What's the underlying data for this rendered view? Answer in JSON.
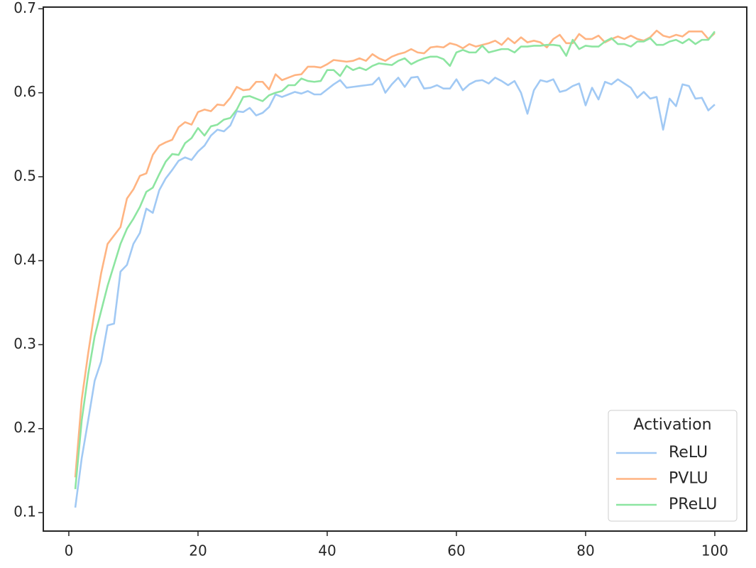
{
  "chart_data": {
    "type": "line",
    "x": [
      1,
      2,
      3,
      4,
      5,
      6,
      7,
      8,
      9,
      10,
      11,
      12,
      13,
      14,
      15,
      16,
      17,
      18,
      19,
      20,
      21,
      22,
      23,
      24,
      25,
      26,
      27,
      28,
      29,
      30,
      31,
      32,
      33,
      34,
      35,
      36,
      37,
      38,
      39,
      40,
      41,
      42,
      43,
      44,
      45,
      46,
      47,
      48,
      49,
      50,
      51,
      52,
      53,
      54,
      55,
      56,
      57,
      58,
      59,
      60,
      61,
      62,
      63,
      64,
      65,
      66,
      67,
      68,
      69,
      70,
      71,
      72,
      73,
      74,
      75,
      76,
      77,
      78,
      79,
      80,
      81,
      82,
      83,
      84,
      85,
      86,
      87,
      88,
      89,
      90,
      91,
      92,
      93,
      94,
      95,
      96,
      97,
      98,
      99,
      100
    ],
    "series": [
      {
        "name": "ReLU",
        "color": "#a1c9f4",
        "values": [
          0.106,
          0.165,
          0.21,
          0.257,
          0.28,
          0.323,
          0.325,
          0.387,
          0.395,
          0.42,
          0.433,
          0.462,
          0.457,
          0.484,
          0.498,
          0.508,
          0.519,
          0.523,
          0.52,
          0.53,
          0.537,
          0.549,
          0.556,
          0.554,
          0.561,
          0.578,
          0.577,
          0.582,
          0.573,
          0.576,
          0.583,
          0.598,
          0.595,
          0.598,
          0.601,
          0.599,
          0.602,
          0.598,
          0.598,
          0.604,
          0.61,
          0.615,
          0.606,
          0.607,
          0.608,
          0.609,
          0.61,
          0.618,
          0.6,
          0.61,
          0.618,
          0.607,
          0.618,
          0.619,
          0.605,
          0.606,
          0.609,
          0.605,
          0.605,
          0.616,
          0.603,
          0.61,
          0.614,
          0.615,
          0.611,
          0.618,
          0.614,
          0.609,
          0.614,
          0.6,
          0.575,
          0.603,
          0.615,
          0.613,
          0.616,
          0.601,
          0.603,
          0.608,
          0.611,
          0.585,
          0.606,
          0.592,
          0.613,
          0.61,
          0.616,
          0.611,
          0.606,
          0.594,
          0.601,
          0.593,
          0.595,
          0.556,
          0.593,
          0.584,
          0.61,
          0.608,
          0.593,
          0.594,
          0.579,
          0.586
        ]
      },
      {
        "name": "PVLU",
        "color": "#ffb482",
        "values": [
          0.142,
          0.235,
          0.29,
          0.34,
          0.385,
          0.42,
          0.43,
          0.44,
          0.474,
          0.485,
          0.501,
          0.504,
          0.526,
          0.537,
          0.541,
          0.544,
          0.559,
          0.565,
          0.562,
          0.577,
          0.58,
          0.578,
          0.586,
          0.585,
          0.594,
          0.607,
          0.603,
          0.604,
          0.613,
          0.613,
          0.604,
          0.622,
          0.615,
          0.618,
          0.621,
          0.622,
          0.631,
          0.631,
          0.63,
          0.634,
          0.639,
          0.638,
          0.637,
          0.638,
          0.641,
          0.638,
          0.646,
          0.641,
          0.638,
          0.643,
          0.646,
          0.648,
          0.652,
          0.648,
          0.647,
          0.654,
          0.655,
          0.654,
          0.659,
          0.657,
          0.653,
          0.658,
          0.655,
          0.657,
          0.659,
          0.662,
          0.657,
          0.665,
          0.659,
          0.666,
          0.66,
          0.662,
          0.66,
          0.654,
          0.664,
          0.669,
          0.659,
          0.659,
          0.67,
          0.664,
          0.664,
          0.668,
          0.66,
          0.664,
          0.667,
          0.664,
          0.668,
          0.664,
          0.662,
          0.666,
          0.674,
          0.668,
          0.666,
          0.669,
          0.667,
          0.673,
          0.673,
          0.673,
          0.664,
          0.671
        ]
      },
      {
        "name": "PReLU",
        "color": "#8de5a1",
        "values": [
          0.128,
          0.21,
          0.265,
          0.31,
          0.34,
          0.37,
          0.395,
          0.42,
          0.438,
          0.45,
          0.464,
          0.482,
          0.487,
          0.503,
          0.518,
          0.527,
          0.526,
          0.54,
          0.546,
          0.558,
          0.549,
          0.56,
          0.562,
          0.568,
          0.57,
          0.58,
          0.595,
          0.596,
          0.593,
          0.59,
          0.597,
          0.6,
          0.602,
          0.609,
          0.609,
          0.617,
          0.614,
          0.613,
          0.614,
          0.627,
          0.627,
          0.62,
          0.632,
          0.627,
          0.63,
          0.627,
          0.632,
          0.635,
          0.634,
          0.633,
          0.638,
          0.641,
          0.634,
          0.638,
          0.641,
          0.643,
          0.643,
          0.64,
          0.632,
          0.648,
          0.651,
          0.648,
          0.648,
          0.656,
          0.648,
          0.65,
          0.652,
          0.652,
          0.648,
          0.655,
          0.655,
          0.656,
          0.656,
          0.657,
          0.657,
          0.656,
          0.644,
          0.663,
          0.652,
          0.656,
          0.655,
          0.655,
          0.661,
          0.665,
          0.658,
          0.658,
          0.655,
          0.661,
          0.661,
          0.665,
          0.657,
          0.657,
          0.661,
          0.663,
          0.659,
          0.664,
          0.658,
          0.663,
          0.663,
          0.673
        ]
      }
    ],
    "legend_title": "Activation",
    "legend_loc": "lower right",
    "xlim": [
      -3.95,
      104.95
    ],
    "xticks": [
      0,
      20,
      40,
      60,
      80,
      100
    ],
    "ylim": [
      0.078,
      0.702
    ],
    "yticks": [
      0.1,
      0.2,
      0.3,
      0.4,
      0.5,
      0.6,
      0.7
    ]
  }
}
